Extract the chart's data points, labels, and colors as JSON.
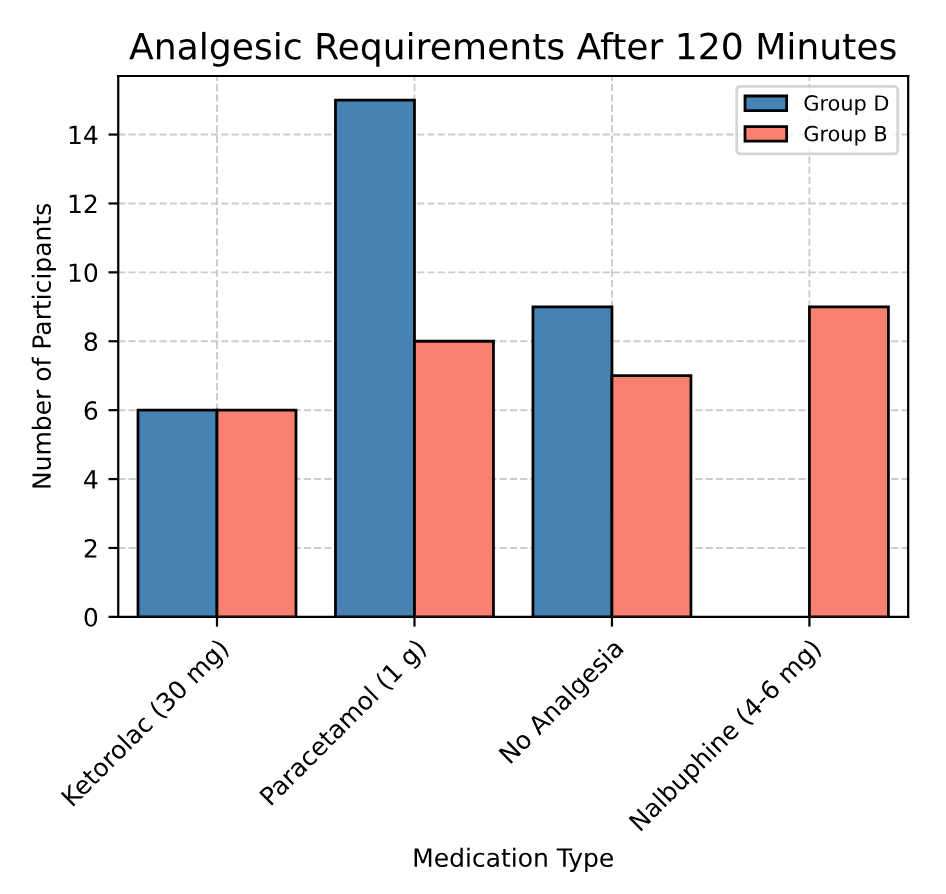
{
  "chart_data": {
    "type": "bar",
    "title": "Analgesic Requirements After 120 Minutes",
    "xlabel": "Medication Type",
    "ylabel": "Number of Participants",
    "categories": [
      "Ketorolac (30 mg)",
      "Paracetamol (1 g)",
      "No Analgesia",
      "Nalbuphine (4-6 mg)"
    ],
    "series": [
      {
        "name": "Group D",
        "color": "#4682b4",
        "values": [
          6,
          15,
          9,
          null
        ]
      },
      {
        "name": "Group B",
        "color": "#fa8072",
        "values": [
          6,
          8,
          7,
          9
        ]
      }
    ],
    "ylim": [
      0,
      15.7
    ],
    "yticks": [
      0,
      2,
      4,
      6,
      8,
      10,
      12,
      14
    ],
    "grid": true,
    "legend": "top right"
  }
}
